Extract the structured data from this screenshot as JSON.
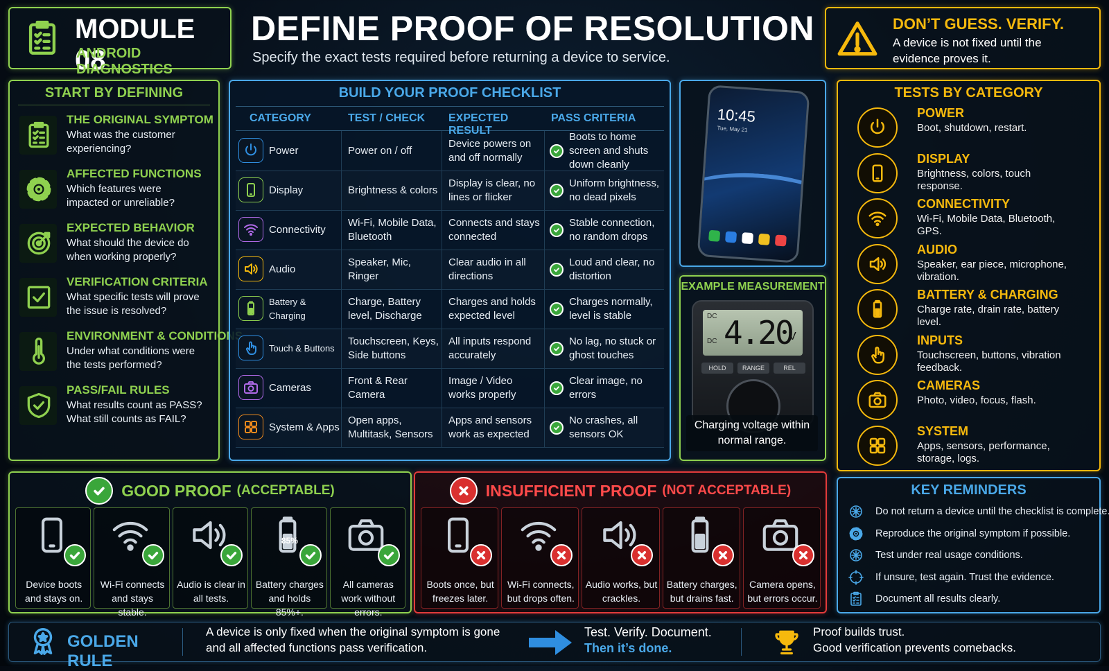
{
  "header": {
    "module_title": "MODULE 08",
    "module_subtitle": "ANDROID DIAGNOSTICS",
    "title": "DEFINE PROOF OF RESOLUTION",
    "subtitle": "Specify the exact tests required before returning a device to service.",
    "callout_title": "DON’T GUESS. VERIFY.",
    "callout_text": "A device is not fixed until the evidence proves it."
  },
  "start": {
    "title": "START BY DEFINING",
    "items": [
      {
        "title": "THE ORIGINAL SYMPTOM",
        "text": "What was the customer experiencing?"
      },
      {
        "title": "AFFECTED FUNCTIONS",
        "text": "Which features were impacted or unreliable?"
      },
      {
        "title": "EXPECTED BEHAVIOR",
        "text": "What should the device do when working properly?"
      },
      {
        "title": "VERIFICATION CRITERIA",
        "text": "What specific tests will prove the issue is resolved?"
      },
      {
        "title": "ENVIRONMENT & CONDITIONS",
        "text": "Under what conditions were the tests performed?"
      },
      {
        "title": "PASS/FAIL RULES",
        "text": "What results count as PASS? What still counts as FAIL?"
      }
    ]
  },
  "checklist": {
    "title": "BUILD YOUR PROOF CHECKLIST",
    "columns": [
      "CATEGORY",
      "TEST / CHECK",
      "EXPECTED RESULT",
      "PASS CRITERIA"
    ],
    "rows": [
      [
        "Power",
        "Power on / off",
        "Device powers on and off normally",
        "Boots to home screen and shuts down cleanly"
      ],
      [
        "Display",
        "Brightness & colors",
        "Display is clear, no lines or flicker",
        "Uniform brightness, no dead pixels"
      ],
      [
        "Connectivity",
        "Wi-Fi, Mobile Data, Bluetooth",
        "Connects and stays connected",
        "Stable connection, no random drops"
      ],
      [
        "Audio",
        "Speaker, Mic, Ringer",
        "Clear audio in all directions",
        "Loud and clear, no distortion"
      ],
      [
        "Battery & Charging",
        "Charge, Battery level, Discharge",
        "Charges and holds expected level",
        "Charges normally, level is stable"
      ],
      [
        "Touch & Buttons",
        "Touchscreen, Keys, Side buttons",
        "All inputs respond accurately",
        "No lag, no stuck or ghost touches"
      ],
      [
        "Cameras",
        "Front & Rear Camera",
        "Image / Video works properly",
        "Clear image, no errors"
      ],
      [
        "System & Apps",
        "Open apps, Multitask, Sensors",
        "Apps and sensors work as expected",
        "No crashes, all sensors OK"
      ]
    ]
  },
  "phone": {
    "time": "10:45",
    "date": "Tue, May 21"
  },
  "measurement": {
    "title": "EXAMPLE MEASUREMENT",
    "mode_top": "DC",
    "mode_bottom": "DC",
    "reading": "4.20",
    "unit": "V",
    "buttons": [
      "HOLD",
      "RANGE",
      "REL"
    ],
    "caption": "Charging voltage within normal range."
  },
  "categories": {
    "title": "TESTS BY CATEGORY",
    "items": [
      {
        "title": "POWER",
        "text": "Boot, shutdown, restart."
      },
      {
        "title": "DISPLAY",
        "text": "Brightness, colors, touch response."
      },
      {
        "title": "CONNECTIVITY",
        "text": "Wi-Fi, Mobile Data, Bluetooth, GPS."
      },
      {
        "title": "AUDIO",
        "text": "Speaker, ear piece, microphone, vibration."
      },
      {
        "title": "BATTERY & CHARGING",
        "text": "Charge rate, drain rate, battery level."
      },
      {
        "title": "INPUTS",
        "text": "Touchscreen, buttons, vibration feedback."
      },
      {
        "title": "CAMERAS",
        "text": "Photo, video, focus, flash."
      },
      {
        "title": "SYSTEM",
        "text": "Apps, sensors, performance, storage, logs."
      }
    ]
  },
  "good": {
    "title": "GOOD PROOF",
    "qualifier": "(ACCEPTABLE)",
    "items": [
      {
        "label": "Device boots and stays on."
      },
      {
        "label": "Wi-Fi connects and stays stable."
      },
      {
        "label": "Audio is clear in all tests."
      },
      {
        "label": "Battery charges and holds 85%+.",
        "icon_text": "85%"
      },
      {
        "label": "All cameras work without errors."
      }
    ]
  },
  "bad": {
    "title": "INSUFFICIENT PROOF",
    "qualifier": "(NOT ACCEPTABLE)",
    "items": [
      {
        "label": "Boots once, but freezes later."
      },
      {
        "label": "Wi-Fi connects, but drops often."
      },
      {
        "label": "Audio works, but crackles."
      },
      {
        "label": "Battery charges, but drains fast."
      },
      {
        "label": "Camera opens, but errors occur."
      }
    ]
  },
  "reminders": {
    "title": "KEY REMINDERS",
    "items": [
      "Do not return a device until the checklist is complete.",
      "Reproduce the original symptom if possible.",
      "Test under real usage conditions.",
      "If unsure, test again. Trust the evidence.",
      "Document all results clearly."
    ]
  },
  "footer": {
    "rule_title": "GOLDEN RULE",
    "rule_text": [
      "A device is only fixed when the original symptom is gone",
      "and all affected functions pass verification."
    ],
    "action": "Test. Verify. Document.",
    "action_emphasis": "Then it’s done.",
    "closing": [
      "Proof builds trust.",
      "Good verification prevents comebacks."
    ]
  }
}
